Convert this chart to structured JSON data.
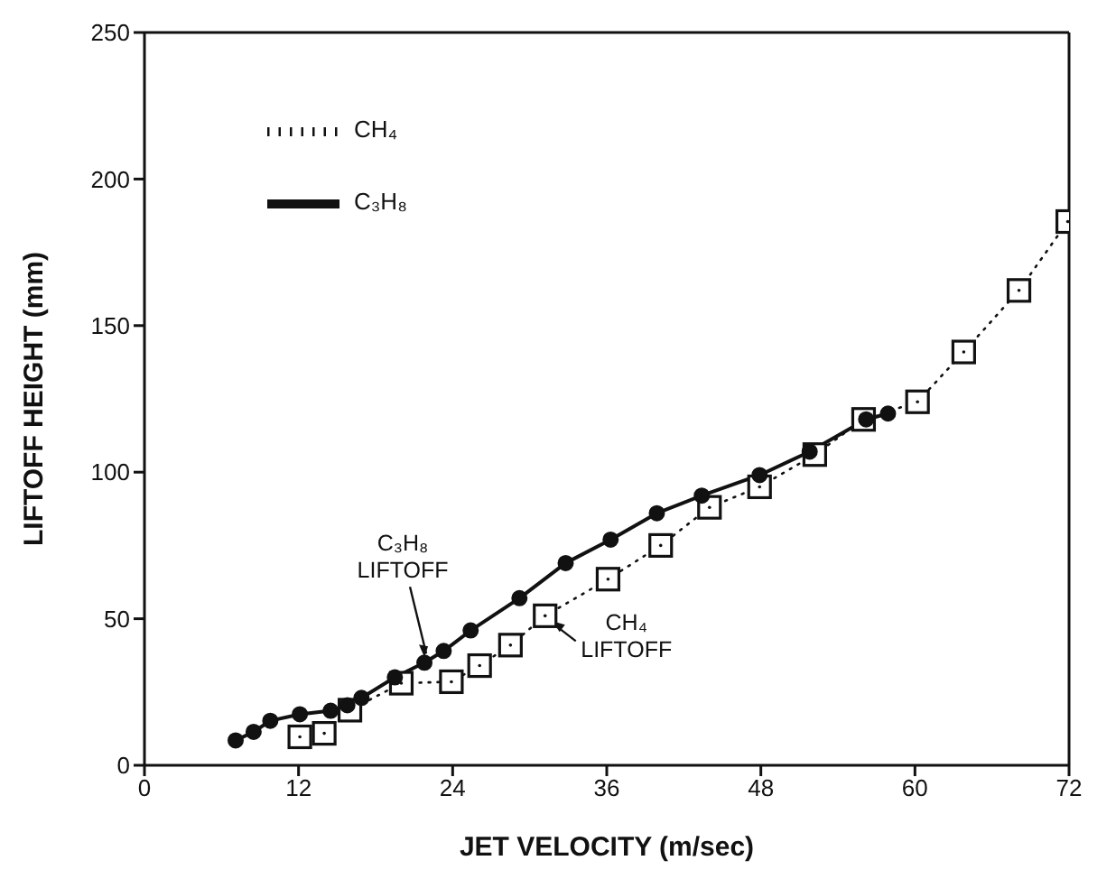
{
  "chart_data": {
    "type": "line",
    "xlabel": "JET VELOCITY (m/sec)",
    "ylabel": "LIFTOFF HEIGHT (mm)",
    "xlim": [
      0,
      72
    ],
    "xticks": [
      0,
      12,
      24,
      36,
      48,
      60,
      72
    ],
    "ylim": [
      0,
      250
    ],
    "yticks": [
      0,
      50,
      100,
      150,
      200,
      250
    ],
    "legend": "top left",
    "series": [
      {
        "name": "C₃H₈",
        "color": "#111111",
        "marker": "circle",
        "line_style": "solid",
        "x": [
          7.1,
          8.5,
          9.8,
          12.1,
          14.5,
          15.8,
          16.9,
          19.5,
          21.8,
          23.3,
          25.4,
          29.2,
          32.8,
          36.3,
          39.9,
          43.4,
          47.9,
          51.8,
          56.2,
          57.9
        ],
        "values": [
          8.5,
          11.4,
          15.2,
          17.4,
          18.6,
          20.5,
          23,
          30,
          35,
          39,
          46,
          57,
          69,
          77,
          86,
          92,
          99,
          107,
          118,
          120
        ]
      },
      {
        "name": "CH₄",
        "color": "#111111",
        "marker": "square",
        "line_style": "dotted",
        "x": [
          12.1,
          14,
          16,
          20,
          23.9,
          26.1,
          28.5,
          31.2,
          36.1,
          40.2,
          44,
          47.9,
          52.2,
          56,
          60.2,
          63.8,
          68.1,
          71.9
        ],
        "values": [
          9.7,
          10.9,
          18.8,
          28,
          28.5,
          34,
          41,
          51,
          63.5,
          75,
          88,
          95,
          106,
          118,
          124,
          141,
          162,
          185.5
        ]
      }
    ],
    "annotations": [
      {
        "text": "C₃H₈ LIFTOFF",
        "x": 21.8,
        "y": 35
      },
      {
        "text": "CH₄ LIFTOFF",
        "x": 31.2,
        "y": 51
      }
    ]
  }
}
